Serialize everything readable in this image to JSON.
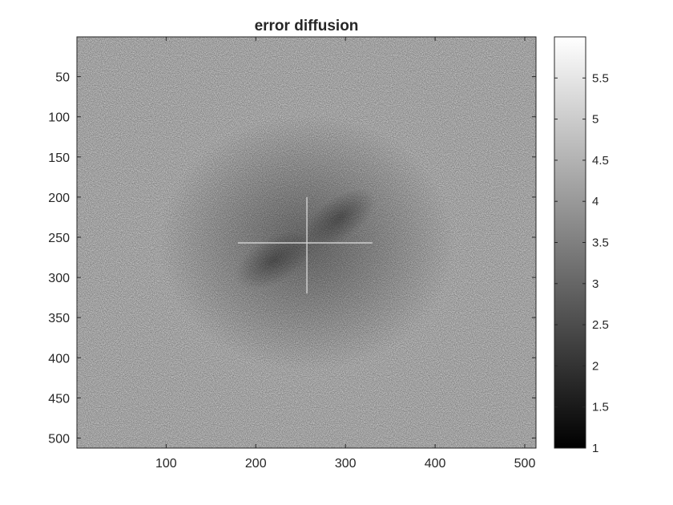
{
  "chart_data": {
    "type": "heatmap",
    "title": "error diffusion",
    "xlabel": "",
    "ylabel": "",
    "colormap": "gray",
    "x_range": [
      1,
      512
    ],
    "y_range": [
      1,
      512
    ],
    "y_direction": "reversed",
    "x_ticks": [
      100,
      200,
      300,
      400,
      500
    ],
    "x_tick_labels": [
      "100",
      "200",
      "300",
      "400",
      "500"
    ],
    "y_ticks": [
      50,
      100,
      150,
      200,
      250,
      300,
      350,
      400,
      450,
      500
    ],
    "y_tick_labels": [
      "50",
      "100",
      "150",
      "200",
      "250",
      "300",
      "350",
      "400",
      "450",
      "500"
    ],
    "colorbar": {
      "range": [
        1,
        6
      ],
      "ticks": [
        1,
        1.5,
        2,
        2.5,
        3,
        3.5,
        4,
        4.5,
        5,
        5.5
      ],
      "tick_labels": [
        "1",
        "1.5",
        "2",
        "2.5",
        "3",
        "3.5",
        "4",
        "4.5",
        "5",
        "5.5"
      ],
      "placement": "right"
    },
    "features": {
      "background_level": 4.6,
      "center": [
        257,
        257
      ],
      "center_dark_level": 3.4,
      "horizontal_line_row": 257,
      "horizontal_line_cols": [
        180,
        330
      ],
      "vertical_line_col": 257,
      "vertical_line_rows": [
        200,
        320
      ]
    }
  }
}
